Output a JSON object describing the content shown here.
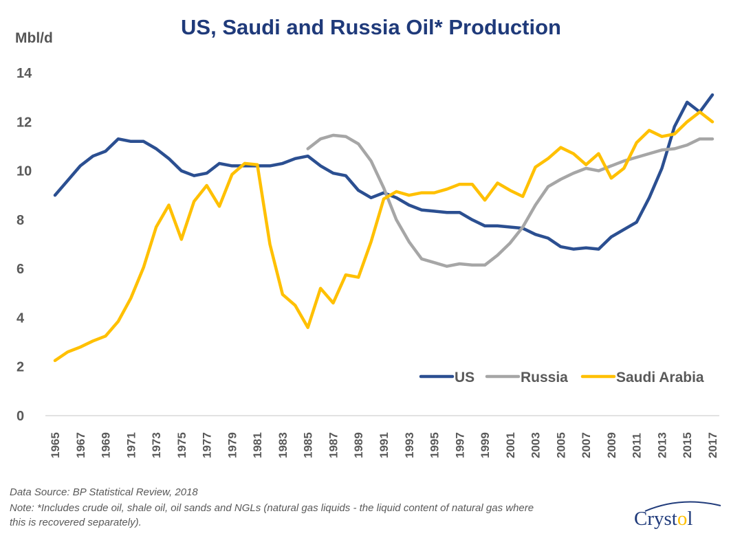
{
  "chart_data": {
    "type": "line",
    "title": "US, Saudi and Russia Oil* Production",
    "ylabel": "Mbl/d",
    "xlabel": "",
    "ylim": [
      0,
      14
    ],
    "yticks": [
      0,
      2,
      4,
      6,
      8,
      10,
      12,
      14
    ],
    "x_tick_labels": [
      "1965",
      "1967",
      "1969",
      "1971",
      "1973",
      "1975",
      "1977",
      "1979",
      "1981",
      "1983",
      "1985",
      "1987",
      "1989",
      "1991",
      "1993",
      "1995",
      "1997",
      "1999",
      "2001",
      "2003",
      "2005",
      "2007",
      "2009",
      "2011",
      "2013",
      "2015",
      "2017"
    ],
    "x": [
      1965,
      1966,
      1967,
      1968,
      1969,
      1970,
      1971,
      1972,
      1973,
      1974,
      1975,
      1976,
      1977,
      1978,
      1979,
      1980,
      1981,
      1982,
      1983,
      1984,
      1985,
      1986,
      1987,
      1988,
      1989,
      1990,
      1991,
      1992,
      1993,
      1994,
      1995,
      1996,
      1997,
      1998,
      1999,
      2000,
      2001,
      2002,
      2003,
      2004,
      2005,
      2006,
      2007,
      2008,
      2009,
      2010,
      2011,
      2012,
      2013,
      2014,
      2015,
      2016,
      2017
    ],
    "grid": false,
    "legend_position": "bottom-right",
    "series": [
      {
        "name": "US",
        "color": "#2b4f91",
        "values": [
          9.0,
          9.6,
          10.2,
          10.6,
          10.8,
          11.3,
          11.2,
          11.2,
          10.9,
          10.5,
          10.0,
          9.8,
          9.9,
          10.3,
          10.2,
          10.2,
          10.2,
          10.2,
          10.3,
          10.5,
          10.6,
          10.2,
          9.9,
          9.8,
          9.2,
          8.9,
          9.1,
          8.9,
          8.6,
          8.4,
          8.35,
          8.3,
          8.3,
          8.0,
          7.75,
          7.75,
          7.7,
          7.65,
          7.4,
          7.25,
          6.9,
          6.8,
          6.85,
          6.8,
          7.3,
          7.6,
          7.9,
          8.9,
          10.1,
          11.8,
          12.8,
          12.4,
          13.1
        ]
      },
      {
        "name": "Russia",
        "color": "#a6a6a6",
        "values": [
          null,
          null,
          null,
          null,
          null,
          null,
          null,
          null,
          null,
          null,
          null,
          null,
          null,
          null,
          null,
          null,
          null,
          null,
          null,
          null,
          10.9,
          11.3,
          11.45,
          11.4,
          11.1,
          10.4,
          9.3,
          8.0,
          7.1,
          6.4,
          6.25,
          6.1,
          6.2,
          6.15,
          6.15,
          6.55,
          7.05,
          7.7,
          8.6,
          9.35,
          9.65,
          9.9,
          10.1,
          10.0,
          10.2,
          10.4,
          10.55,
          10.7,
          10.85,
          10.9,
          11.05,
          11.3,
          11.3
        ]
      },
      {
        "name": "Saudi Arabia",
        "color": "#ffc000",
        "values": [
          2.25,
          2.6,
          2.8,
          3.05,
          3.25,
          3.85,
          4.8,
          6.05,
          7.7,
          8.6,
          7.2,
          8.75,
          9.4,
          8.55,
          9.85,
          10.3,
          10.25,
          7.0,
          4.95,
          4.5,
          3.6,
          5.2,
          4.6,
          5.75,
          5.65,
          7.1,
          8.85,
          9.15,
          9.0,
          9.1,
          9.1,
          9.25,
          9.45,
          9.45,
          8.8,
          9.5,
          9.2,
          8.95,
          10.15,
          10.5,
          10.95,
          10.7,
          10.25,
          10.7,
          9.7,
          10.1,
          11.15,
          11.65,
          11.4,
          11.5,
          12.0,
          12.4,
          12.0
        ]
      }
    ]
  },
  "footer": {
    "source": "Data Source: BP Statistical Review, 2018",
    "note_line1": "Note: *Includes crude oil, shale oil, oil sands and NGLs (natural gas liquids - the liquid content of natural gas where",
    "note_line2": "this is recovered separately)."
  },
  "logo": {
    "text": "Crystol",
    "color": "#1f3a7a"
  }
}
